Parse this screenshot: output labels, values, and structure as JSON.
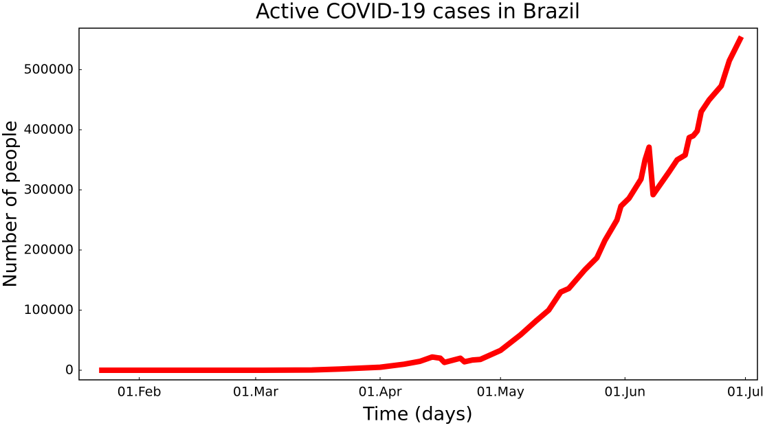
{
  "chart_data": {
    "type": "line",
    "title": "Active COVID-19 cases in Brazil",
    "x_label": "Time (days)",
    "y_label": "Number of people",
    "xlim": [
      "17.Jan",
      "04.Jul"
    ],
    "xticks": [
      "01.Feb",
      "01.Mar",
      "01.Apr",
      "01.May",
      "01.Jun",
      "01.Jul"
    ],
    "ylim": [
      -16000,
      569000
    ],
    "yticks": [
      0,
      100000,
      200000,
      300000,
      400000,
      500000
    ],
    "grid": false,
    "series": [
      {
        "color": "#ff0000",
        "x": [
          "22.Jan",
          "01.Mar",
          "15.Mar",
          "22.Mar",
          "01.Apr",
          "07.Apr",
          "11.Apr",
          "14.Apr",
          "16.Apr",
          "17.Apr",
          "21.Apr",
          "22.Apr",
          "24.Apr",
          "26.Apr",
          "01.May",
          "06.May",
          "10.May",
          "13.May",
          "16.May",
          "18.May",
          "22.May",
          "25.May",
          "27.May",
          "30.May",
          "31.May",
          "02.Jun",
          "05.Jun",
          "06.Jun",
          "07.Jun",
          "08.Jun",
          "12.Jun",
          "14.Jun",
          "16.Jun",
          "17.Jun",
          "18.Jun",
          "19.Jun",
          "20.Jun",
          "22.Jun",
          "25.Jun",
          "27.Jun",
          "30.Jun"
        ],
        "values": [
          0,
          0,
          500,
          2000,
          5000,
          10000,
          15000,
          22000,
          20000,
          13000,
          20000,
          14000,
          17000,
          18000,
          33000,
          59000,
          83000,
          100000,
          130000,
          136000,
          167000,
          187000,
          216000,
          250000,
          273000,
          286000,
          318000,
          350000,
          371000,
          292000,
          330000,
          350000,
          358000,
          387000,
          390000,
          398000,
          430000,
          450000,
          473000,
          515000,
          555000
        ]
      }
    ]
  }
}
